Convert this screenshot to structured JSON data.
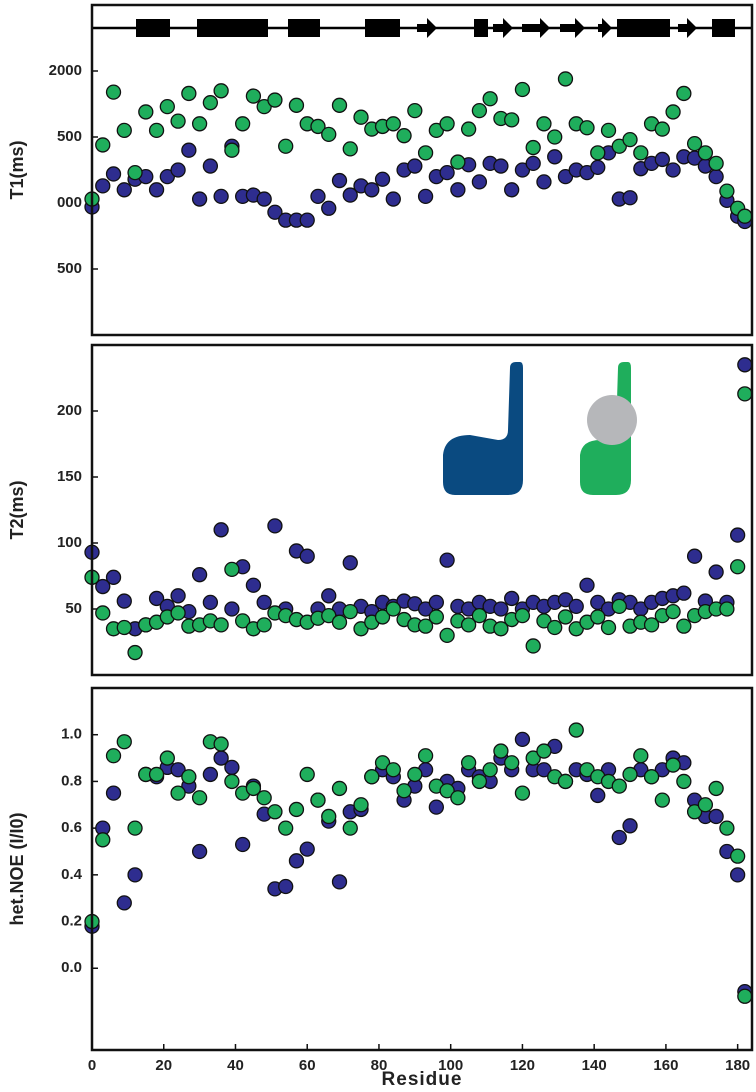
{
  "chart_data": [
    {
      "type": "scatter",
      "ylabel": "T1(ms)",
      "xlim": [
        0,
        184
      ],
      "ylim": [
        0,
        2500
      ],
      "yticks": [
        {
          "value": 500,
          "label": "500"
        },
        {
          "value": 1000,
          "label": "000"
        },
        {
          "value": 1500,
          "label": "500"
        },
        2000
      ],
      "x": [
        0,
        3,
        6,
        9,
        12,
        15,
        18,
        21,
        24,
        27,
        30,
        33,
        36,
        39,
        42,
        45,
        48,
        51,
        54,
        57,
        60,
        63,
        66,
        69,
        72,
        75,
        78,
        81,
        84,
        87,
        90,
        93,
        96,
        99,
        102,
        105,
        108,
        111,
        114,
        117,
        120,
        123,
        126,
        129,
        132,
        135,
        138,
        141,
        144,
        147,
        150,
        153,
        156,
        159,
        162,
        165,
        168,
        171,
        174,
        177,
        180,
        182
      ],
      "series": [
        {
          "color": "#2e2d8f",
          "values": [
            970,
            1130,
            1220,
            1100,
            1180,
            1200,
            1100,
            1200,
            1250,
            1400,
            1030,
            1280,
            1050,
            1430,
            1050,
            1060,
            1030,
            930,
            870,
            870,
            870,
            1050,
            960,
            1170,
            1060,
            1130,
            1100,
            1180,
            1030,
            1250,
            1280,
            1050,
            1200,
            1230,
            1100,
            1290,
            1160,
            1300,
            1280,
            1100,
            1250,
            1300,
            1160,
            1350,
            1200,
            1250,
            1230,
            1270,
            1380,
            1030,
            1040,
            1260,
            1300,
            1330,
            1250,
            1350,
            1340,
            1280,
            1200,
            1020,
            900,
            860
          ]
        },
        {
          "color": "#1fae5c",
          "values": [
            1030,
            1440,
            1840,
            1550,
            1230,
            1690,
            1550,
            1730,
            1620,
            1830,
            1600,
            1760,
            1850,
            1400,
            1600,
            1810,
            1730,
            1780,
            1430,
            1740,
            1600,
            1580,
            1520,
            1740,
            1410,
            1650,
            1560,
            1580,
            1600,
            1510,
            1700,
            1380,
            1550,
            1600,
            1310,
            1560,
            1700,
            1790,
            1640,
            1630,
            1860,
            1420,
            1600,
            1500,
            1940,
            1600,
            1570,
            1380,
            1550,
            1430,
            1480,
            1380,
            1600,
            1560,
            1690,
            1830,
            1450,
            1380,
            1300,
            1090,
            960,
            900
          ]
        }
      ]
    },
    {
      "type": "scatter",
      "ylabel": "T2(ms)",
      "xlim": [
        0,
        184
      ],
      "ylim": [
        0,
        250
      ],
      "yticks": [
        50,
        100,
        150,
        200
      ],
      "x": [
        0,
        3,
        6,
        9,
        12,
        15,
        18,
        21,
        24,
        27,
        30,
        33,
        36,
        39,
        42,
        45,
        48,
        51,
        54,
        57,
        60,
        63,
        66,
        69,
        72,
        75,
        78,
        81,
        84,
        87,
        90,
        93,
        96,
        99,
        102,
        105,
        108,
        111,
        114,
        117,
        120,
        123,
        126,
        129,
        132,
        135,
        138,
        141,
        144,
        147,
        150,
        153,
        156,
        159,
        162,
        165,
        168,
        171,
        174,
        177,
        180,
        182
      ],
      "series": [
        {
          "color": "#2e2d8f",
          "values": [
            93,
            67,
            74,
            56,
            35,
            38,
            58,
            52,
            60,
            48,
            76,
            55,
            110,
            50,
            82,
            68,
            55,
            113,
            50,
            94,
            90,
            50,
            60,
            50,
            85,
            52,
            48,
            55,
            52,
            56,
            54,
            50,
            55,
            87,
            52,
            50,
            55,
            52,
            50,
            58,
            50,
            55,
            52,
            55,
            57,
            52,
            68,
            55,
            50,
            57,
            55,
            50,
            55,
            58,
            60,
            62,
            90,
            56,
            78,
            55,
            106,
            235
          ]
        },
        {
          "color": "#1fae5c",
          "values": [
            74,
            47,
            35,
            36,
            17,
            38,
            40,
            44,
            47,
            37,
            38,
            41,
            38,
            80,
            41,
            35,
            38,
            47,
            45,
            42,
            40,
            43,
            45,
            40,
            48,
            35,
            40,
            44,
            50,
            42,
            38,
            37,
            44,
            30,
            41,
            38,
            45,
            37,
            35,
            42,
            45,
            22,
            41,
            36,
            44,
            35,
            40,
            44,
            36,
            52,
            37,
            40,
            38,
            45,
            48,
            37,
            45,
            48,
            50,
            50,
            82,
            213
          ]
        }
      ]
    },
    {
      "type": "scatter",
      "ylabel": "het.NOE (I/I0)",
      "xlabel": "Residue",
      "xlim": [
        0,
        184
      ],
      "ylim": [
        -0.35,
        1.2
      ],
      "xticks": [
        0,
        20,
        40,
        60,
        80,
        100,
        120,
        140,
        160,
        180
      ],
      "yticks": [
        {
          "value": 0,
          "label": "0.0"
        },
        0.2,
        0.4,
        0.6,
        0.8,
        {
          "value": 1,
          "label": "1.0"
        }
      ],
      "x": [
        0,
        3,
        6,
        9,
        12,
        15,
        18,
        21,
        24,
        27,
        30,
        33,
        36,
        39,
        42,
        45,
        48,
        51,
        54,
        57,
        60,
        63,
        66,
        69,
        72,
        75,
        78,
        81,
        84,
        87,
        90,
        93,
        96,
        99,
        102,
        105,
        108,
        111,
        114,
        117,
        120,
        123,
        126,
        129,
        132,
        135,
        138,
        141,
        144,
        147,
        150,
        153,
        156,
        159,
        162,
        165,
        168,
        171,
        174,
        177,
        180,
        182
      ],
      "series": [
        {
          "color": "#2e2d8f",
          "values": [
            0.18,
            0.6,
            0.75,
            0.28,
            0.4,
            0.83,
            0.82,
            0.86,
            0.85,
            0.78,
            0.5,
            0.83,
            0.9,
            0.86,
            0.53,
            0.78,
            0.66,
            0.34,
            0.35,
            0.46,
            0.51,
            0.72,
            0.63,
            0.37,
            0.67,
            0.68,
            0.82,
            0.85,
            0.82,
            0.72,
            0.78,
            0.85,
            0.69,
            0.8,
            0.77,
            0.85,
            0.82,
            0.8,
            0.9,
            0.85,
            0.98,
            0.85,
            0.85,
            0.95,
            0.8,
            0.85,
            0.83,
            0.74,
            0.85,
            0.56,
            0.61,
            0.85,
            0.82,
            0.85,
            0.9,
            0.88,
            0.72,
            0.65,
            0.65,
            0.5,
            0.4,
            -0.1
          ]
        },
        {
          "color": "#1fae5c",
          "values": [
            0.2,
            0.55,
            0.91,
            0.97,
            0.6,
            0.83,
            0.83,
            0.9,
            0.75,
            0.82,
            0.73,
            0.97,
            0.96,
            0.8,
            0.75,
            0.77,
            0.73,
            0.67,
            0.6,
            0.68,
            0.83,
            0.72,
            0.65,
            0.77,
            0.6,
            0.7,
            0.82,
            0.88,
            0.85,
            0.76,
            0.83,
            0.91,
            0.78,
            0.76,
            0.73,
            0.88,
            0.8,
            0.85,
            0.93,
            0.88,
            0.75,
            0.9,
            0.93,
            0.82,
            0.8,
            1.02,
            0.85,
            0.82,
            0.8,
            0.78,
            0.83,
            0.91,
            0.82,
            0.72,
            0.87,
            0.8,
            0.67,
            0.7,
            0.77,
            0.6,
            0.48,
            -0.12
          ]
        }
      ]
    }
  ]
}
